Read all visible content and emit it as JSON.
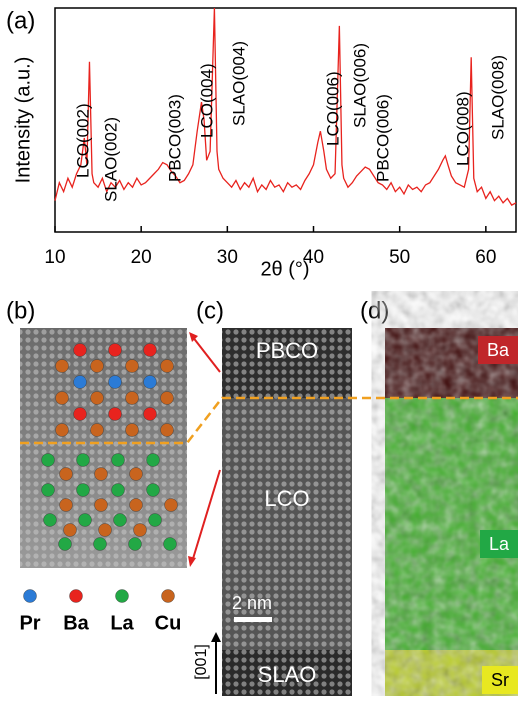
{
  "chart_data": {
    "type": "line",
    "panel_label": "(a)",
    "xlabel": "2θ (°)",
    "ylabel": "Intensity (a.u.)",
    "xlim": [
      10,
      63.5
    ],
    "xticks": [
      10,
      20,
      30,
      40,
      50,
      60
    ],
    "ylim": [
      0,
      100
    ],
    "x": [
      10,
      10.5,
      11,
      11.5,
      12,
      12.5,
      13,
      13.4,
      13.7,
      14,
      14.3,
      14.5,
      15,
      15.5,
      16,
      16.5,
      17,
      17.5,
      18,
      18.5,
      19,
      19.5,
      20,
      20.5,
      21,
      21.5,
      22,
      22.5,
      23,
      23.5,
      24,
      24.5,
      25,
      25.5,
      26,
      26.5,
      27,
      27.3,
      27.6,
      28,
      28.5,
      28.8,
      29,
      29.5,
      30,
      30.5,
      31,
      31.5,
      32,
      32.5,
      33,
      33.5,
      34,
      34.5,
      35,
      35.5,
      36,
      36.5,
      37,
      37.5,
      38,
      38.5,
      39,
      39.5,
      40,
      40.5,
      40.8,
      41.2,
      41.5,
      42,
      42.5,
      43,
      43.3,
      43.5,
      44,
      44.5,
      45,
      45.5,
      46,
      46.5,
      47,
      47.5,
      48,
      48.5,
      49,
      49.5,
      50,
      50.5,
      51,
      51.5,
      52,
      52.5,
      53,
      53.5,
      54,
      54.5,
      55,
      55.3,
      55.6,
      56,
      56.5,
      57,
      57.5,
      58,
      58.3,
      58.6,
      59,
      59.5,
      60,
      60.5,
      61,
      61.5,
      62,
      62.5,
      63,
      63.5
    ],
    "series": [
      {
        "color": "#e8231e",
        "values": [
          14,
          22,
          18,
          24,
          20,
          26,
          30,
          42,
          30,
          76,
          26,
          22,
          20,
          24,
          18,
          22,
          20,
          23,
          19,
          22,
          20,
          24,
          21,
          22,
          24,
          26,
          28,
          31,
          30,
          27,
          25,
          22,
          23,
          26,
          30,
          45,
          58,
          50,
          32,
          36,
          100,
          36,
          28,
          24,
          22,
          20,
          23,
          19,
          22,
          20,
          24,
          18,
          21,
          19,
          23,
          20,
          21,
          18,
          22,
          20,
          21,
          19,
          23,
          26,
          30,
          40,
          45,
          36,
          28,
          24,
          26,
          92,
          30,
          24,
          20,
          22,
          25,
          27,
          29,
          28,
          25,
          22,
          21,
          19,
          22,
          18,
          20,
          17,
          21,
          19,
          20,
          18,
          21,
          22,
          25,
          28,
          32,
          34,
          30,
          25,
          22,
          21,
          20,
          28,
          78,
          24,
          18,
          20,
          15,
          18,
          14,
          16,
          13,
          15,
          12,
          13
        ]
      }
    ],
    "annotations": [
      "LCO(002)",
      "SLAO(002)",
      "PBCO(003)",
      "LCO(004)",
      "SLAO(004)",
      "LCO(006)",
      "SLAO(006)",
      "PBCO(006)",
      "LCO(008)",
      "SLAO(008)"
    ]
  },
  "panels": {
    "b": {
      "label": "(b)",
      "legend": [
        {
          "name": "Pr",
          "color": "#2b7bd6"
        },
        {
          "name": "Ba",
          "color": "#e8231e"
        },
        {
          "name": "La",
          "color": "#22a845"
        },
        {
          "name": "Cu",
          "color": "#c8641e"
        }
      ]
    },
    "c": {
      "label": "(c)",
      "layers": [
        "PBCO",
        "LCO",
        "SLAO"
      ],
      "scale_bar": "2 nm",
      "direction": "[001]"
    },
    "d": {
      "label": "(d)",
      "elements": [
        "Ba",
        "La",
        "Sr"
      ]
    }
  }
}
